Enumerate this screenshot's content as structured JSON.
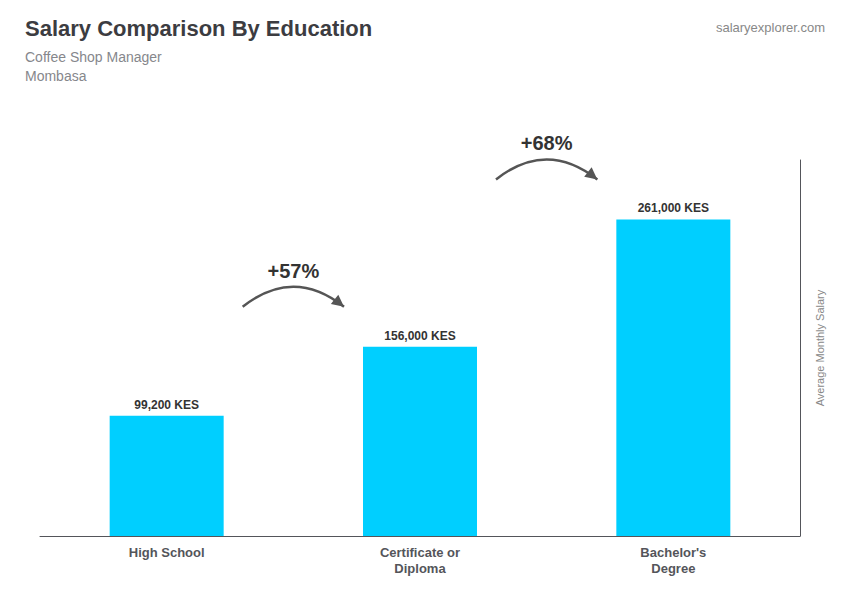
{
  "chart_data": {
    "type": "bar",
    "title": "Salary Comparison By Education",
    "subtitle": [
      "Coffee Shop Manager",
      "Mombasa"
    ],
    "source": "salaryexplorer.com",
    "y_label": "Average Monthly Salary",
    "categories": [
      "High School",
      "Certificate or\nDiploma",
      "Bachelor's\nDegree"
    ],
    "values": [
      99200,
      156000,
      261000
    ],
    "value_labels": [
      "99,200 KES",
      "156,000 KES",
      "261,000 KES"
    ],
    "data_labels": true,
    "annotations": [
      "+57%",
      "+68%"
    ],
    "color": "#00CFFF",
    "ylim": [
      0,
      310000
    ],
    "grid": false,
    "tick_labels": "x"
  }
}
